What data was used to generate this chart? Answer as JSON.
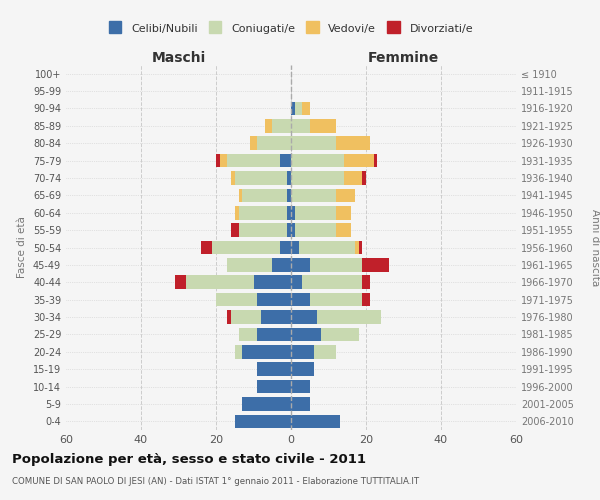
{
  "age_groups": [
    "0-4",
    "5-9",
    "10-14",
    "15-19",
    "20-24",
    "25-29",
    "30-34",
    "35-39",
    "40-44",
    "45-49",
    "50-54",
    "55-59",
    "60-64",
    "65-69",
    "70-74",
    "75-79",
    "80-84",
    "85-89",
    "90-94",
    "95-99",
    "100+"
  ],
  "birth_years": [
    "2006-2010",
    "2001-2005",
    "1996-2000",
    "1991-1995",
    "1986-1990",
    "1981-1985",
    "1976-1980",
    "1971-1975",
    "1966-1970",
    "1961-1965",
    "1956-1960",
    "1951-1955",
    "1946-1950",
    "1941-1945",
    "1936-1940",
    "1931-1935",
    "1926-1930",
    "1921-1925",
    "1916-1920",
    "1911-1915",
    "≤ 1910"
  ],
  "maschi": {
    "celibi": [
      15,
      13,
      9,
      9,
      13,
      9,
      8,
      9,
      10,
      5,
      3,
      1,
      1,
      1,
      1,
      3,
      0,
      0,
      0,
      0,
      0
    ],
    "coniugati": [
      0,
      0,
      0,
      0,
      2,
      5,
      8,
      11,
      18,
      12,
      18,
      13,
      13,
      12,
      14,
      14,
      9,
      5,
      0,
      0,
      0
    ],
    "vedovi": [
      0,
      0,
      0,
      0,
      0,
      0,
      0,
      0,
      0,
      0,
      0,
      0,
      1,
      1,
      1,
      2,
      2,
      2,
      0,
      0,
      0
    ],
    "divorziati": [
      0,
      0,
      0,
      0,
      0,
      0,
      1,
      0,
      3,
      0,
      3,
      2,
      0,
      0,
      0,
      1,
      0,
      0,
      0,
      0,
      0
    ]
  },
  "femmine": {
    "nubili": [
      13,
      5,
      5,
      6,
      6,
      8,
      7,
      5,
      3,
      5,
      2,
      1,
      1,
      0,
      0,
      0,
      0,
      0,
      1,
      0,
      0
    ],
    "coniugate": [
      0,
      0,
      0,
      0,
      6,
      10,
      17,
      14,
      16,
      14,
      15,
      11,
      11,
      12,
      14,
      14,
      12,
      5,
      2,
      0,
      0
    ],
    "vedove": [
      0,
      0,
      0,
      0,
      0,
      0,
      0,
      0,
      0,
      0,
      1,
      4,
      4,
      5,
      5,
      8,
      9,
      7,
      2,
      0,
      0
    ],
    "divorziate": [
      0,
      0,
      0,
      0,
      0,
      0,
      0,
      2,
      2,
      7,
      1,
      0,
      0,
      0,
      1,
      1,
      0,
      0,
      0,
      0,
      0
    ]
  },
  "colors": {
    "celibi": "#3d6ea8",
    "coniugati": "#c8d9b0",
    "vedovi": "#f0c060",
    "divorziati": "#c0202a"
  },
  "xlim": 60,
  "title": "Popolazione per età, sesso e stato civile - 2011",
  "subtitle": "COMUNE DI SAN PAOLO DI JESI (AN) - Dati ISTAT 1° gennaio 2011 - Elaborazione TUTTITALIA.IT",
  "ylabel_left": "Fasce di età",
  "ylabel_right": "Anni di nascita",
  "xlabel_maschi": "Maschi",
  "xlabel_femmine": "Femmine",
  "legend_labels": [
    "Celibi/Nubili",
    "Coniugati/e",
    "Vedovi/e",
    "Divorziati/e"
  ],
  "bg_color": "#f5f5f5",
  "grid_color": "#cccccc"
}
